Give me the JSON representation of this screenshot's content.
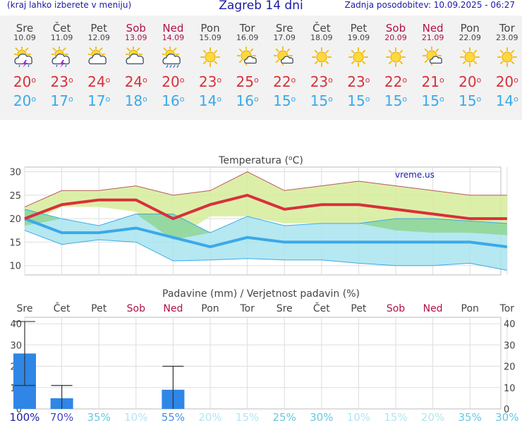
{
  "header": {
    "left_note": "(kraj lahko izberete v meniju)",
    "title": "Zagreb 14 dni",
    "updated": "Zadnja posodobitev: 10.09.2025 - 06:27"
  },
  "days": [
    {
      "name": "Sre",
      "date": "10.09",
      "weekend": false,
      "icon": "sun-cloud-lightning-rain-icon",
      "tmax": "20",
      "tmin": "20"
    },
    {
      "name": "Čet",
      "date": "11.09",
      "weekend": false,
      "icon": "sun-cloud-lightning-rain-icon",
      "tmax": "23",
      "tmin": "17"
    },
    {
      "name": "Pet",
      "date": "12.09",
      "weekend": false,
      "icon": "sun-cloud-icon",
      "tmax": "24",
      "tmin": "17"
    },
    {
      "name": "Sob",
      "date": "13.09",
      "weekend": true,
      "icon": "sun-cloud-icon",
      "tmax": "24",
      "tmin": "18"
    },
    {
      "name": "Ned",
      "date": "14.09",
      "weekend": true,
      "icon": "sun-cloud-rain-icon",
      "tmax": "20",
      "tmin": "16"
    },
    {
      "name": "Pon",
      "date": "15.09",
      "weekend": false,
      "icon": "sun-icon",
      "tmax": "23",
      "tmin": "14"
    },
    {
      "name": "Tor",
      "date": "16.09",
      "weekend": false,
      "icon": "sun-small-cloud-icon",
      "tmax": "25",
      "tmin": "16"
    },
    {
      "name": "Sre",
      "date": "17.09",
      "weekend": false,
      "icon": "sun-small-cloud-icon",
      "tmax": "22",
      "tmin": "15"
    },
    {
      "name": "Čet",
      "date": "18.09",
      "weekend": false,
      "icon": "sun-icon",
      "tmax": "23",
      "tmin": "15"
    },
    {
      "name": "Pet",
      "date": "19.09",
      "weekend": false,
      "icon": "sun-icon",
      "tmax": "23",
      "tmin": "15"
    },
    {
      "name": "Sob",
      "date": "20.09",
      "weekend": true,
      "icon": "sun-icon",
      "tmax": "22",
      "tmin": "15"
    },
    {
      "name": "Ned",
      "date": "21.09",
      "weekend": true,
      "icon": "sun-small-cloud-icon",
      "tmax": "21",
      "tmin": "15"
    },
    {
      "name": "Pon",
      "date": "22.09",
      "weekend": false,
      "icon": "sun-icon",
      "tmax": "20",
      "tmin": "15"
    },
    {
      "name": "Tor",
      "date": "23.09",
      "weekend": false,
      "icon": "sun-icon",
      "tmax": "20",
      "tmin": "14"
    }
  ],
  "colors": {
    "max": "#d9303a",
    "min": "#3ba9e8",
    "weekend": "#b0104a",
    "weekday": "#444444",
    "bar": "#2f86e6",
    "max_band": "#d6ec9a",
    "min_band": "#a8e4ef",
    "overlap": "#8ed48e"
  },
  "chart_data": [
    {
      "type": "line",
      "title": "Temperatura (°C)",
      "watermark": "vreme.us",
      "ylim": [
        8,
        31
      ],
      "yticks": [
        10,
        15,
        20,
        25,
        30
      ],
      "grid": true,
      "series": [
        {
          "key": "max",
          "values": [
            20,
            23,
            24,
            24,
            20,
            23,
            25,
            22,
            23,
            23,
            22,
            21,
            20,
            20
          ],
          "low": [
            18.5,
            22.5,
            22.5,
            21.5,
            15.5,
            20.5,
            20.5,
            19,
            19,
            19,
            17.5,
            17,
            17,
            16.5
          ],
          "high": [
            22.5,
            26,
            26,
            27,
            25,
            26,
            30,
            26,
            27,
            28,
            27,
            26,
            25,
            25
          ]
        },
        {
          "key": "min",
          "values": [
            20,
            17,
            17,
            18,
            16,
            14,
            16,
            15,
            15,
            15,
            15,
            15,
            15,
            14
          ],
          "low": [
            17.5,
            14.5,
            15.5,
            15,
            11,
            11.2,
            11.5,
            11.2,
            11.2,
            10.5,
            10,
            10,
            10.5,
            9
          ],
          "high": [
            22,
            20,
            18.5,
            21,
            21,
            17,
            20.5,
            18.5,
            19,
            19,
            20,
            20,
            19.5,
            19
          ]
        }
      ]
    },
    {
      "type": "bar",
      "title": "Padavine (mm) / Verjetnost padavin (%)",
      "categories": [
        "Sre",
        "Čet",
        "Pet",
        "Sob",
        "Ned",
        "Pon",
        "Tor",
        "Sre",
        "Čet",
        "Pet",
        "Sob",
        "Ned",
        "Pon",
        "Tor"
      ],
      "weekend": [
        false,
        false,
        false,
        true,
        true,
        false,
        false,
        false,
        false,
        false,
        true,
        true,
        false,
        false
      ],
      "values": [
        26,
        5,
        0,
        0,
        9,
        0,
        0,
        0,
        0,
        0,
        0,
        0,
        0,
        0
      ],
      "error_high": [
        41,
        11,
        null,
        null,
        20,
        null,
        null,
        null,
        null,
        null,
        null,
        null,
        null,
        null
      ],
      "error_low": [
        11,
        0,
        null,
        null,
        0,
        null,
        null,
        null,
        null,
        null,
        null,
        null,
        null,
        null
      ],
      "probability": [
        "100%",
        "70%",
        "35%",
        "10%",
        "55%",
        "20%",
        "15%",
        "25%",
        "30%",
        "10%",
        "15%",
        "20%",
        "35%",
        "30%"
      ],
      "probability_colors": [
        "#1a1aa6",
        "#4646c8",
        "#66c8e0",
        "#b0e6f2",
        "#4690e0",
        "#b0e6f2",
        "#b0e6f2",
        "#66c8e0",
        "#66c8e0",
        "#b0e6f2",
        "#b0e6f2",
        "#b0e6f2",
        "#66c8e0",
        "#66c8e0"
      ],
      "ylim": [
        0,
        43
      ],
      "yticks": [
        0,
        10,
        20,
        30,
        40
      ]
    }
  ]
}
